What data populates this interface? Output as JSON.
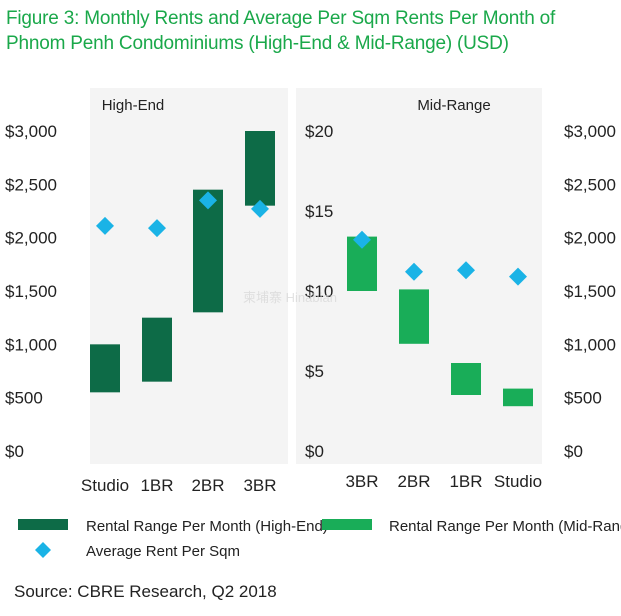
{
  "figure": {
    "title_line1": "Figure 3: Monthly Rents and Average Per Sqm Rents Per Month of",
    "title_line2": "Phnom Penh Condominiums (High-End & Mid-Range) (USD)",
    "source": "Source: CBRE Research, Q2 2018",
    "watermark": "柬埔寨 Hinabian"
  },
  "colors": {
    "high_end": "#0d6b47",
    "mid_range": "#19ad58",
    "avg": "#1ab3e6",
    "title": "#1aa84a"
  },
  "chart_data": [
    {
      "type": "bar",
      "panel": "High-End",
      "title": "High-End",
      "categories": [
        "Studio",
        "1BR",
        "2BR",
        "3BR"
      ],
      "ylim": [
        0,
        3000
      ],
      "yticks": [
        "$3,000",
        "$2,500",
        "$2,000",
        "$1,500",
        "$1,000",
        "$500",
        "$0"
      ],
      "ytick_values": [
        3000,
        2500,
        2000,
        1500,
        1000,
        500,
        0
      ],
      "series": [
        {
          "name": "Rental Range Per Month (High-End)",
          "kind": "range",
          "low": [
            550,
            650,
            1300,
            2300
          ],
          "high": [
            1000,
            1250,
            2450,
            3000
          ]
        },
        {
          "name": "Average Rent Per Sqm",
          "kind": "point",
          "axis": "secondary",
          "values": [
            2110,
            2090,
            2350,
            2270
          ]
        }
      ]
    },
    {
      "type": "bar",
      "panel": "Mid-Range",
      "title": "Mid-Range",
      "categories": [
        "3BR",
        "2BR",
        "1BR",
        "Studio"
      ],
      "ylim": [
        0,
        20
      ],
      "yticks": [
        "$20",
        "$15",
        "$10",
        "$5",
        "$0"
      ],
      "ytick_values": [
        20,
        15,
        10,
        5,
        0
      ],
      "secondary_ylim": [
        0,
        3000
      ],
      "secondary_yticks": [
        "$3,000",
        "$2,500",
        "$2,000",
        "$1,500",
        "$1,000",
        "$500",
        "$0"
      ],
      "secondary_ytick_values": [
        3000,
        2500,
        2000,
        1500,
        1000,
        500,
        0
      ],
      "series": [
        {
          "name": "Rental Range Per Month (Mid-Range)",
          "kind": "range",
          "low": [
            10,
            6.7,
            3.5,
            2.8
          ],
          "high": [
            13.4,
            10.1,
            5.5,
            3.9
          ]
        },
        {
          "name": "Average Rent Per Sqm",
          "kind": "point",
          "values": [
            13.2,
            11.2,
            11.3,
            10.9
          ]
        }
      ]
    }
  ],
  "legend": [
    {
      "label": "Rental Range Per Month (High-End)",
      "shape": "rect",
      "color": "#0d6b47"
    },
    {
      "label": "Rental Range Per Month (Mid-Range)",
      "shape": "rect",
      "color": "#19ad58"
    },
    {
      "label": "Average Rent Per Sqm",
      "shape": "diamond",
      "color": "#1ab3e6"
    }
  ]
}
